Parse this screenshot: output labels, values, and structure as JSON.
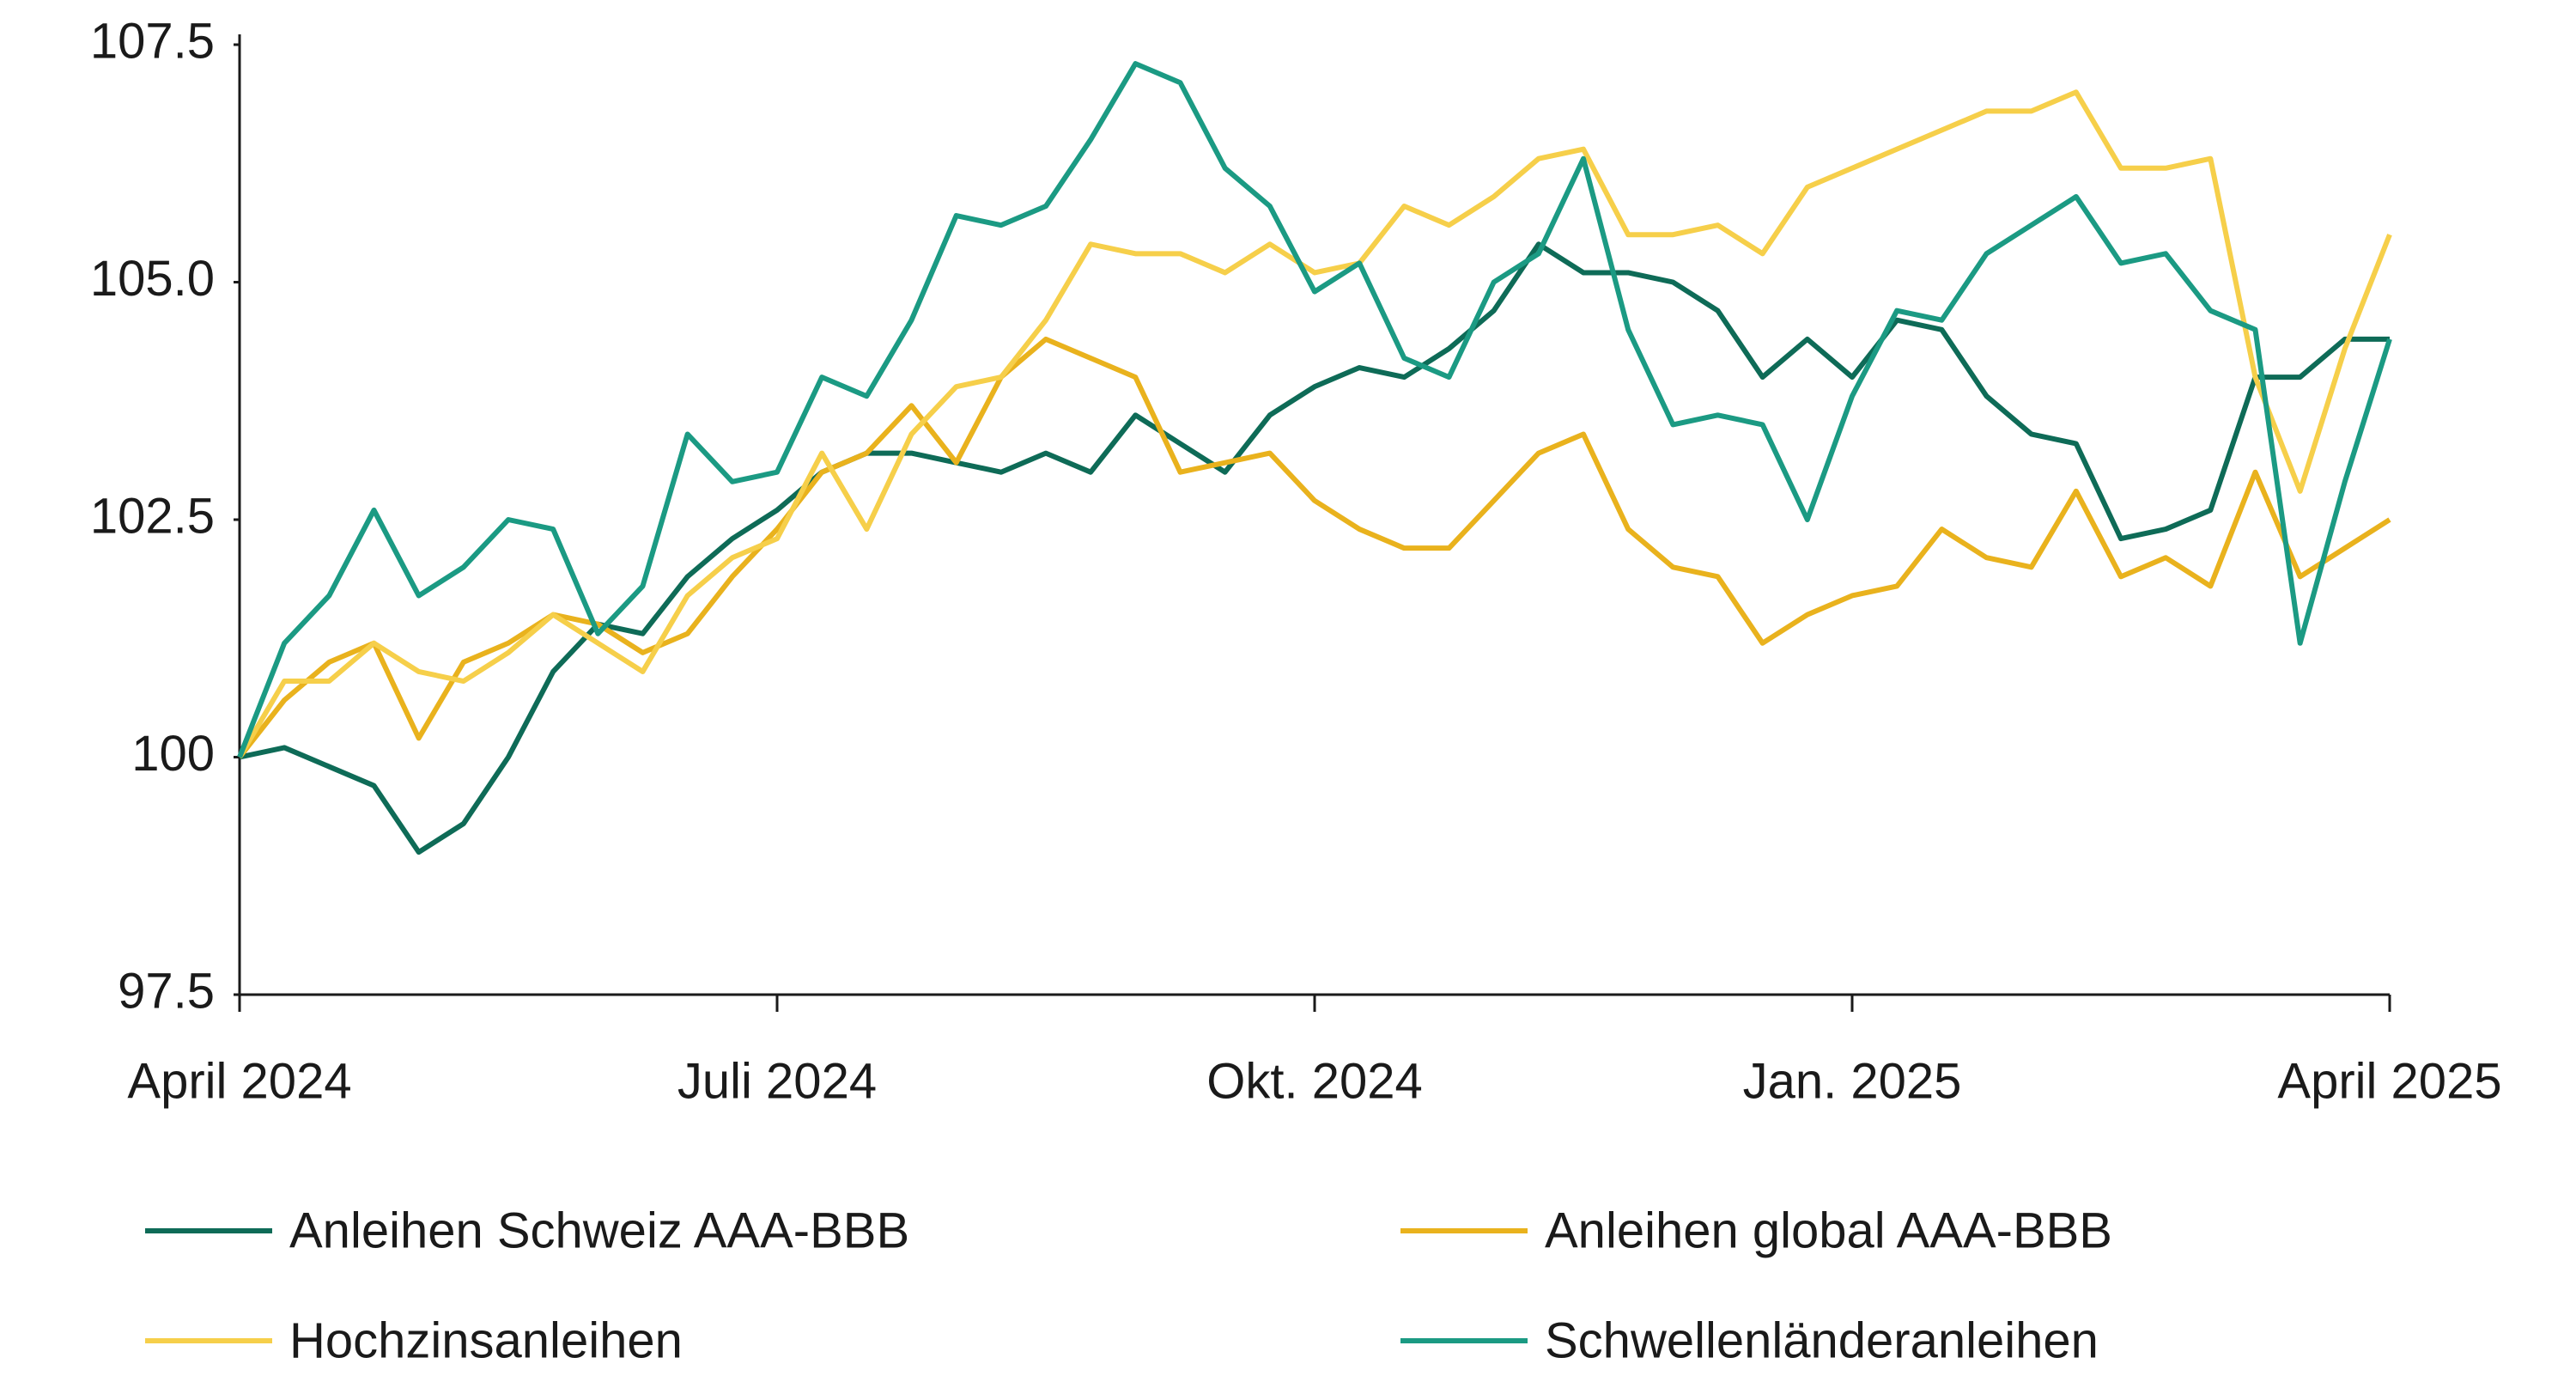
{
  "chart_data": {
    "type": "line",
    "x": [
      0,
      0.25,
      0.5,
      0.75,
      1,
      1.25,
      1.5,
      1.75,
      2,
      2.25,
      2.5,
      2.75,
      3,
      3.25,
      3.5,
      3.75,
      4,
      4.25,
      4.5,
      4.75,
      5,
      5.25,
      5.5,
      5.75,
      6,
      6.25,
      6.5,
      6.75,
      7,
      7.25,
      7.5,
      7.75,
      8,
      8.25,
      8.5,
      8.75,
      9,
      9.25,
      9.5,
      9.75,
      10,
      10.25,
      10.5,
      10.75,
      11,
      11.25,
      11.5,
      11.75,
      12
    ],
    "xlim": [
      0,
      12
    ],
    "xticks": [
      {
        "value": 0,
        "label": "April 2024"
      },
      {
        "value": 3,
        "label": "Juli 2024"
      },
      {
        "value": 6,
        "label": "Okt. 2024"
      },
      {
        "value": 9,
        "label": "Jan. 2025"
      },
      {
        "value": 12,
        "label": "April 2025"
      }
    ],
    "ylim": [
      97.5,
      107.5
    ],
    "yticks": [
      97.5,
      100,
      102.5,
      {
        "value": 105,
        "label": "105.0"
      },
      107.5
    ],
    "legend": "bottom",
    "series": [
      {
        "name": "Anleihen Schweiz AAA-BBB",
        "color": "#0e6b57",
        "values": [
          100,
          100.1,
          99.9,
          99.7,
          99.0,
          99.3,
          100.0,
          100.9,
          101.4,
          101.3,
          101.9,
          102.3,
          102.6,
          103.0,
          103.2,
          103.2,
          103.1,
          103.0,
          103.2,
          103.0,
          103.6,
          103.3,
          103.0,
          103.6,
          103.9,
          104.1,
          104.0,
          104.3,
          104.7,
          105.4,
          105.1,
          105.1,
          105.0,
          104.7,
          104.0,
          104.4,
          104.0,
          104.6,
          104.5,
          103.8,
          103.4,
          103.3,
          102.3,
          102.4,
          102.6,
          104.0,
          104.0,
          104.4,
          104.4
        ]
      },
      {
        "name": "Anleihen global AAA-BBB",
        "color": "#e9b21d",
        "values": [
          100,
          100.6,
          101.0,
          101.2,
          100.2,
          101.0,
          101.2,
          101.5,
          101.4,
          101.1,
          101.3,
          101.9,
          102.4,
          103.0,
          103.2,
          103.7,
          103.1,
          104.0,
          104.4,
          104.2,
          104.0,
          103.0,
          103.1,
          103.2,
          102.7,
          102.4,
          102.2,
          102.2,
          102.7,
          103.2,
          103.4,
          102.4,
          102.0,
          101.9,
          101.2,
          101.5,
          101.7,
          101.8,
          102.4,
          102.1,
          102.0,
          102.8,
          101.9,
          102.1,
          101.8,
          103.0,
          101.9,
          102.2,
          102.5
        ]
      },
      {
        "name": "Hochzinsanleihen",
        "color": "#f6cf4a",
        "values": [
          100,
          100.8,
          100.8,
          101.2,
          100.9,
          100.8,
          101.1,
          101.5,
          101.2,
          100.9,
          101.7,
          102.1,
          102.3,
          103.2,
          102.4,
          103.4,
          103.9,
          104.0,
          104.6,
          105.4,
          105.3,
          105.3,
          105.1,
          105.4,
          105.1,
          105.2,
          105.8,
          105.6,
          105.9,
          106.3,
          106.4,
          105.5,
          105.5,
          105.6,
          105.3,
          106.0,
          106.2,
          106.4,
          106.6,
          106.8,
          106.8,
          107.0,
          106.2,
          106.2,
          106.3,
          104.0,
          102.8,
          104.3,
          105.5
        ]
      },
      {
        "name": "Schwellenländeranleihen",
        "color": "#1b9a83",
        "values": [
          100,
          101.2,
          101.7,
          102.6,
          101.7,
          102.0,
          102.5,
          102.4,
          101.3,
          101.8,
          103.4,
          102.9,
          103.0,
          104.0,
          103.8,
          104.6,
          105.7,
          105.6,
          105.8,
          106.5,
          107.3,
          107.1,
          106.2,
          105.8,
          104.9,
          105.2,
          104.2,
          104.0,
          105.0,
          105.3,
          106.3,
          104.5,
          103.5,
          103.6,
          103.5,
          102.5,
          103.8,
          104.7,
          104.6,
          105.3,
          105.6,
          105.9,
          105.2,
          105.3,
          104.7,
          104.5,
          101.2,
          102.9,
          104.4
        ]
      }
    ]
  }
}
